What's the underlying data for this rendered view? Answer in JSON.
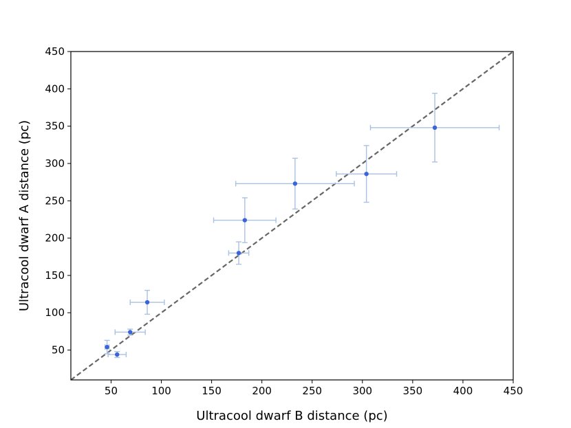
{
  "chart_data": {
    "type": "scatter",
    "title": "",
    "xlabel": "Ultracool dwarf B distance (pc)",
    "ylabel": "Ultracool dwarf A distance (pc)",
    "xlim": [
      10,
      450
    ],
    "ylim": [
      10,
      450
    ],
    "x_ticks": [
      50,
      100,
      150,
      200,
      250,
      300,
      350,
      400,
      450
    ],
    "y_ticks": [
      50,
      100,
      150,
      200,
      250,
      300,
      350,
      400,
      450
    ],
    "grid": false,
    "legend": "none",
    "reference_line": {
      "type": "y=x",
      "style": "dashed",
      "color": "#666666"
    },
    "marker_color": "#3a64d8",
    "errorbar_color": "#a9c1e2",
    "points": [
      {
        "x": 46,
        "y": 54,
        "xerr": 2,
        "yerr": 9
      },
      {
        "x": 56,
        "y": 44,
        "xerr": 9,
        "yerr": 4
      },
      {
        "x": 69,
        "y": 74,
        "xerr": 15,
        "yerr": 4
      },
      {
        "x": 86,
        "y": 114,
        "xerr": 17,
        "yerr": 16
      },
      {
        "x": 177,
        "y": 180,
        "xerr": 10,
        "yerr": 15
      },
      {
        "x": 183,
        "y": 224,
        "xerr": 31,
        "yerr": 30
      },
      {
        "x": 233,
        "y": 273,
        "xerr": 59,
        "yerr": 34
      },
      {
        "x": 304,
        "y": 286,
        "xerr": 30,
        "yerr": 38
      },
      {
        "x": 372,
        "y": 348,
        "xerr": 64,
        "yerr": 46
      }
    ]
  }
}
